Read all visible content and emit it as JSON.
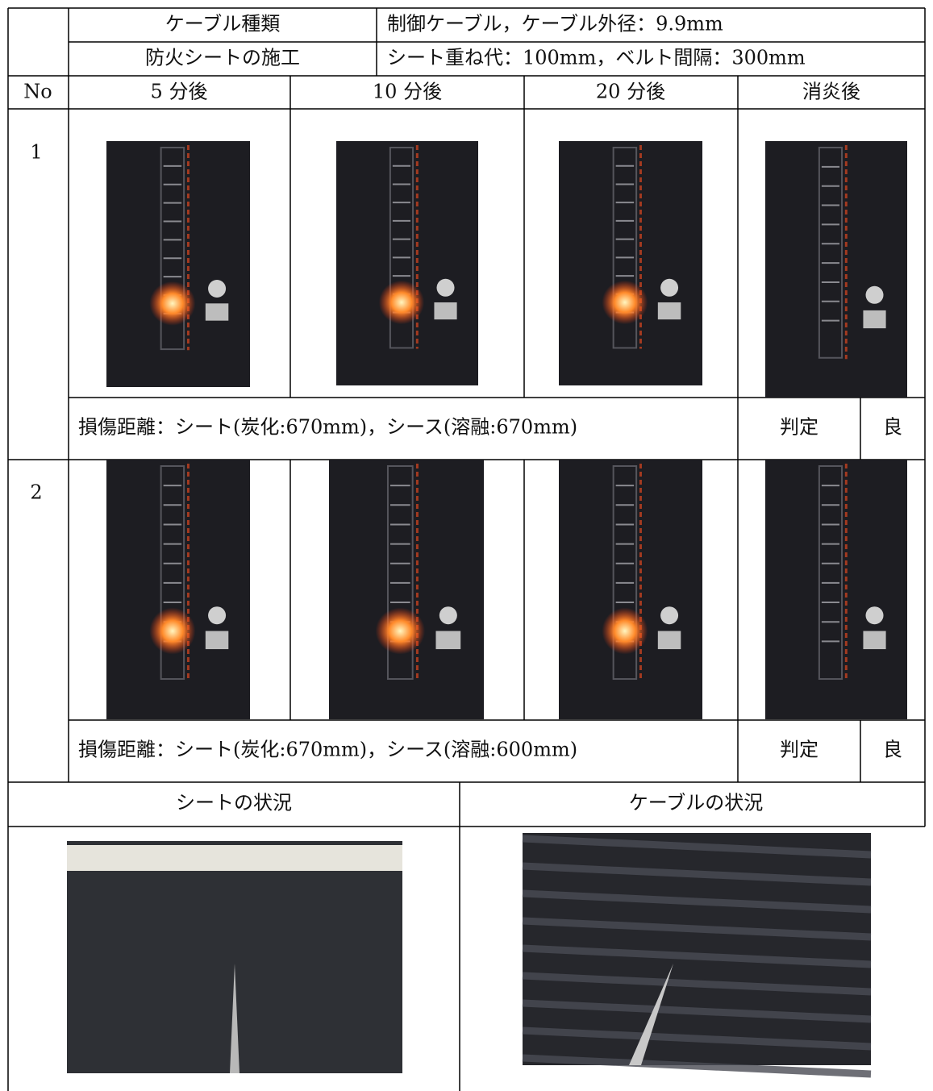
{
  "header": {
    "rows": [
      {
        "label": "ケーブル種類",
        "value": "制御ケーブル，ケーブル外径：9.9mm"
      },
      {
        "label": "防火シートの施工",
        "value": "シート重ね代：100mm，ベルト間隔：300mm"
      }
    ]
  },
  "columns": [
    "No",
    "5 分後",
    "10 分後",
    "20 分後",
    "消炎後"
  ],
  "tests": [
    {
      "no": "1",
      "damage": "損傷距離：シート(炭化:670mm)，シース(溶融:670mm)",
      "judgment_label": "判定",
      "judgment": "良"
    },
    {
      "no": "2",
      "damage": "損傷距離：シート(炭化:670mm)，シース(溶融:600mm)",
      "judgment_label": "判定",
      "judgment": "良"
    }
  ],
  "bottom": {
    "headers": [
      "シートの状況",
      "ケーブルの状況"
    ]
  }
}
